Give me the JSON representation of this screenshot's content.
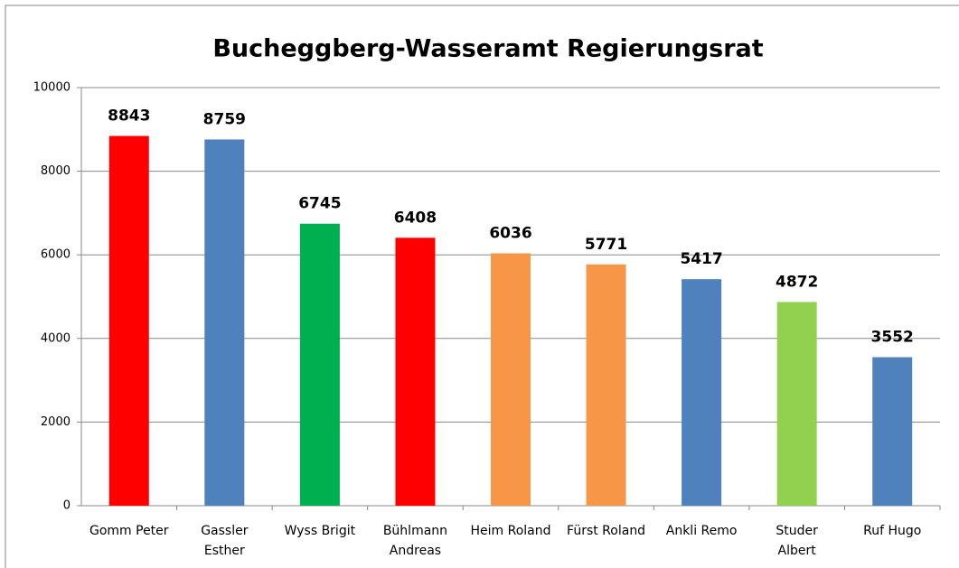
{
  "chart_data": {
    "type": "bar",
    "title": "Bucheggberg-Wasseramt Regierungsrat",
    "categories": [
      "Gomm Peter",
      "Gassler\nEsther",
      "Wyss Brigit",
      "Bühlmann\nAndreas",
      "Heim Roland",
      "Fürst Roland",
      "Ankli Remo",
      "Studer\nAlbert",
      "Ruf Hugo"
    ],
    "values": [
      8843,
      8759,
      6745,
      6408,
      6036,
      5771,
      5417,
      4872,
      3552
    ],
    "colors": [
      "#ff0000",
      "#4f81bd",
      "#00b050",
      "#ff0000",
      "#f79646",
      "#f79646",
      "#4f81bd",
      "#92d050",
      "#4f81bd"
    ],
    "ylim": [
      0,
      10000
    ],
    "yticks": [
      0,
      2000,
      4000,
      6000,
      8000,
      10000
    ],
    "grid": true
  }
}
